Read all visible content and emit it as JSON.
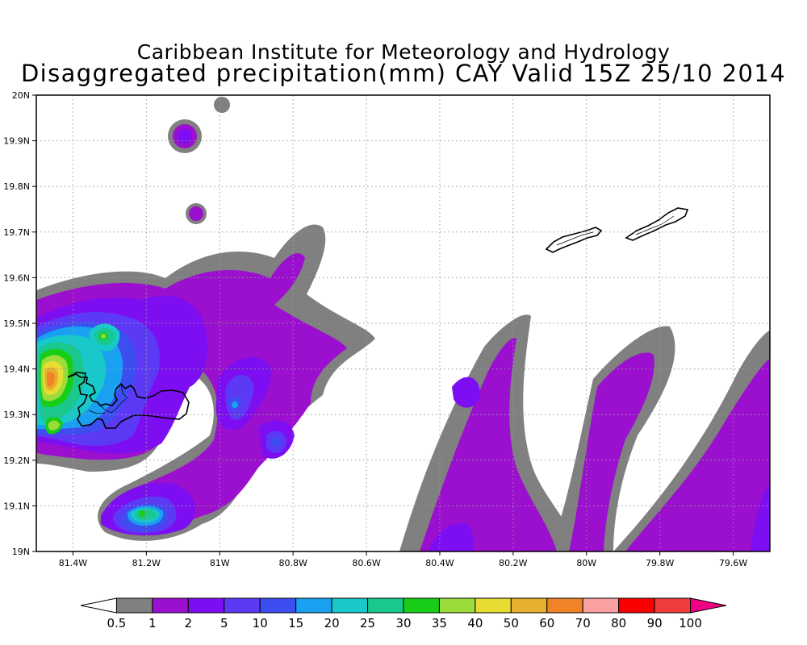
{
  "title": "Caribbean Institute for Meteorology and Hydrology",
  "subtitle": "Disaggregated precipitation(mm) CAY Valid 15Z 25/10 2014",
  "map": {
    "lon_range": [
      -81.5,
      -79.5
    ],
    "lat_range": [
      19.0,
      20.0
    ],
    "grid": "dotted",
    "lon_ticks": [
      {
        "value": -81.4,
        "label": "81.4W"
      },
      {
        "value": -81.2,
        "label": "81.2W"
      },
      {
        "value": -81.0,
        "label": "81W"
      },
      {
        "value": -80.8,
        "label": "80.8W"
      },
      {
        "value": -80.6,
        "label": "80.6W"
      },
      {
        "value": -80.4,
        "label": "80.4W"
      },
      {
        "value": -80.2,
        "label": "80.2W"
      },
      {
        "value": -80.0,
        "label": "80W"
      },
      {
        "value": -79.8,
        "label": "79.8W"
      },
      {
        "value": -79.6,
        "label": "79.6W"
      }
    ],
    "lat_ticks": [
      {
        "value": 19.0,
        "label": "19N"
      },
      {
        "value": 19.1,
        "label": "19.1N"
      },
      {
        "value": 19.2,
        "label": "19.2N"
      },
      {
        "value": 19.3,
        "label": "19.3N"
      },
      {
        "value": 19.4,
        "label": "19.4N"
      },
      {
        "value": 19.5,
        "label": "19.5N"
      },
      {
        "value": 19.6,
        "label": "19.6N"
      },
      {
        "value": 19.7,
        "label": "19.7N"
      },
      {
        "value": 19.8,
        "label": "19.8N"
      },
      {
        "value": 19.9,
        "label": "19.9N"
      },
      {
        "value": 20.0,
        "label": "20N"
      }
    ],
    "islands": [
      "Grand Cayman",
      "Little Cayman",
      "Cayman Brac"
    ]
  },
  "colorbar": {
    "labels": [
      "0.5",
      "1",
      "2",
      "5",
      "10",
      "15",
      "20",
      "25",
      "30",
      "35",
      "40",
      "50",
      "60",
      "70",
      "80",
      "90",
      "100"
    ],
    "colors": [
      "#ffffff",
      "#808080",
      "#9b0fcf",
      "#7d0ef2",
      "#5c3af5",
      "#3d4ef0",
      "#1aa0f0",
      "#19c8c8",
      "#18c88c",
      "#18cd18",
      "#9bdc3a",
      "#e6dc32",
      "#e6af2d",
      "#f08228",
      "#faa0a0",
      "#fa0000",
      "#f03c3c",
      "#f00082"
    ]
  },
  "colors": {
    "c1": "#808080",
    "c2": "#9b0fcf",
    "c3": "#7d0ef2",
    "c4": "#5c3af5",
    "c5": "#3d4ef0",
    "c6": "#1aa0f0",
    "c7": "#19c8c8",
    "c8": "#18c88c",
    "c9": "#18cd18",
    "c10": "#9bdc3a",
    "c11": "#e6dc32",
    "c12": "#e6af2d",
    "c13": "#f08228"
  }
}
